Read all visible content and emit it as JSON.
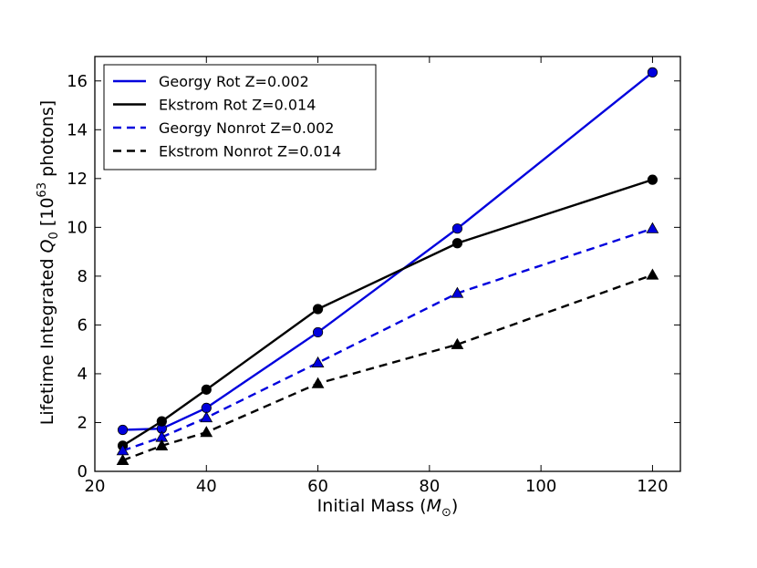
{
  "chart_data": {
    "type": "line",
    "xlabel_text": "Initial Mass (",
    "xlabel_symbol": "M",
    "xlabel_sub": "⊙",
    "xlabel_close": ")",
    "ylabel_text": "Lifetime Integrated ",
    "ylabel_symbol": "Q",
    "ylabel_sub": "0",
    "ylabel_unit_open": " [10",
    "ylabel_exp": "63",
    "ylabel_unit_close": " photons]",
    "xlim": [
      20,
      125
    ],
    "ylim": [
      0,
      17
    ],
    "xticks": [
      20,
      40,
      60,
      80,
      100,
      120
    ],
    "yticks": [
      0,
      2,
      4,
      6,
      8,
      10,
      12,
      14,
      16
    ],
    "legend_position": "top-left",
    "series": [
      {
        "name": "Georgy Rot Z=0.002",
        "color": "#0000dd",
        "dash": "solid",
        "marker": "circle",
        "x": [
          25,
          32,
          40,
          60,
          85,
          120
        ],
        "y": [
          1.7,
          1.75,
          2.6,
          5.7,
          9.95,
          16.35
        ]
      },
      {
        "name": "Ekstrom Rot Z=0.014",
        "color": "#000000",
        "dash": "solid",
        "marker": "circle",
        "x": [
          25,
          32,
          40,
          60,
          85,
          120
        ],
        "y": [
          1.05,
          2.05,
          3.35,
          6.65,
          9.35,
          11.95
        ]
      },
      {
        "name": "Georgy Nonrot Z=0.002",
        "color": "#0000dd",
        "dash": "dashed",
        "marker": "triangle",
        "x": [
          25,
          32,
          40,
          60,
          85,
          120
        ],
        "y": [
          0.85,
          1.4,
          2.2,
          4.45,
          7.3,
          9.95
        ]
      },
      {
        "name": "Ekstrom Nonrot Z=0.014",
        "color": "#000000",
        "dash": "dashed",
        "marker": "triangle",
        "x": [
          25,
          32,
          40,
          60,
          85,
          120
        ],
        "y": [
          0.45,
          1.05,
          1.6,
          3.6,
          5.2,
          8.05
        ]
      }
    ]
  }
}
